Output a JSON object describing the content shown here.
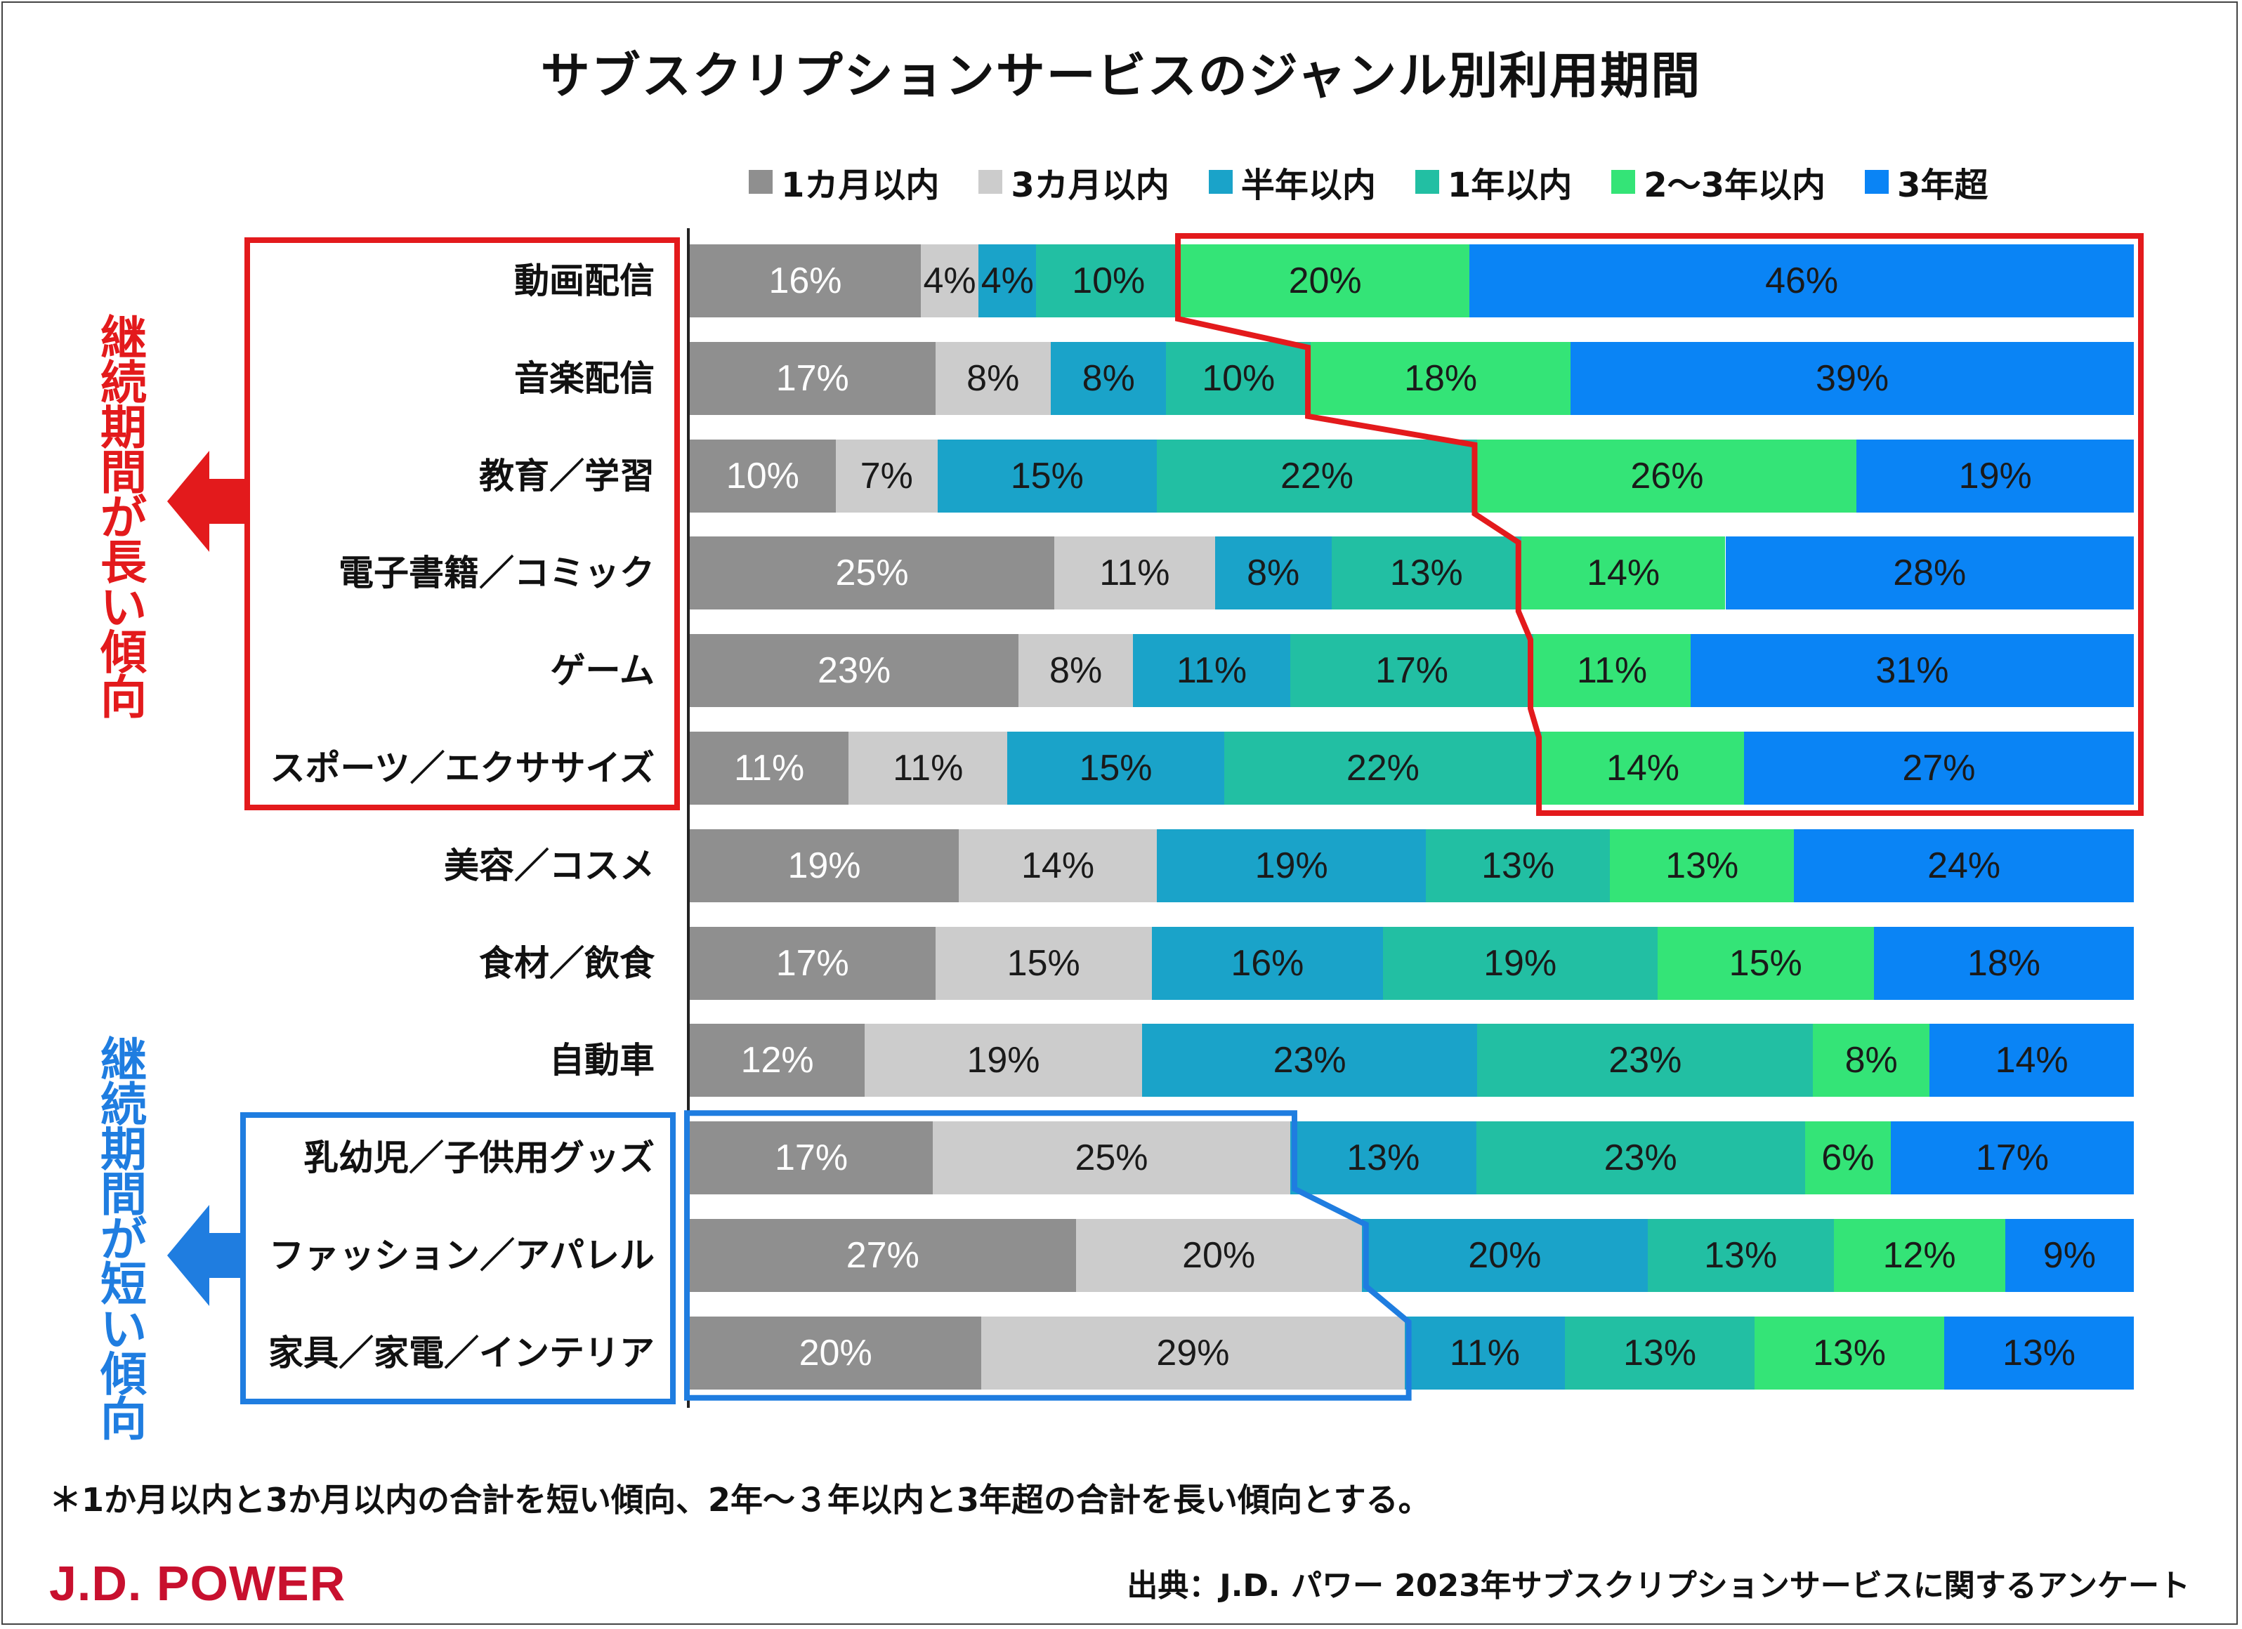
{
  "title": "サブスクリプションサービスのジャンル別利用期間",
  "colors": {
    "1m": "#8f8f8f",
    "3m": "#cccccc",
    "6m": "#1aa3c9",
    "1y": "#22bfa3",
    "2-3y": "#34e477",
    "3y+": "#0a84f5",
    "long_accent": "#e31a1c",
    "short_accent": "#1f7de0"
  },
  "side_labels": {
    "long": "継続期間が長い傾向",
    "short": "継続期間が短い傾向"
  },
  "footnote": "＊1か月以内と3か月以内の合計を短い傾向、2年～３年以内と3年超の合計を長い傾向とする。",
  "logo": "J.D. POWER",
  "source": "出典：J.D. パワー 2023年サブスクリプションサービスに関するアンケート",
  "chart_data": {
    "type": "bar",
    "orientation": "horizontal",
    "stacked": "percent",
    "title": "サブスクリプションサービスのジャンル別利用期間",
    "xlim": [
      0,
      100
    ],
    "legend_position": "top",
    "categories": [
      "動画配信",
      "音楽配信",
      "教育／学習",
      "電子書籍／コミック",
      "ゲーム",
      "スポーツ／エクササイズ",
      "美容／コスメ",
      "食材／飲食",
      "自動車",
      "乳幼児／子供用グッズ",
      "ファッション／アパレル",
      "家具／家電／インテリア"
    ],
    "series": [
      {
        "key": "1m",
        "name": "1カ月以内",
        "values": [
          16,
          17,
          10,
          25,
          23,
          11,
          19,
          17,
          12,
          17,
          27,
          20
        ]
      },
      {
        "key": "3m",
        "name": "3カ月以内",
        "values": [
          4,
          8,
          7,
          11,
          8,
          11,
          14,
          15,
          19,
          25,
          20,
          29
        ]
      },
      {
        "key": "6m",
        "name": "半年以内",
        "values": [
          4,
          8,
          15,
          8,
          11,
          15,
          19,
          16,
          23,
          13,
          20,
          11
        ]
      },
      {
        "key": "1y",
        "name": "1年以内",
        "values": [
          10,
          10,
          22,
          13,
          17,
          22,
          13,
          19,
          23,
          23,
          13,
          13
        ]
      },
      {
        "key": "2-3y",
        "name": "2～3年以内",
        "values": [
          20,
          18,
          26,
          14,
          11,
          14,
          13,
          15,
          8,
          6,
          12,
          13
        ]
      },
      {
        "key": "3y+",
        "name": "3年超",
        "values": [
          46,
          39,
          19,
          28,
          31,
          27,
          24,
          18,
          14,
          17,
          9,
          13
        ]
      }
    ],
    "value_suffix": "%",
    "groups": [
      {
        "label": "継続期間が長い傾向",
        "categories": [
          0,
          1,
          2,
          3,
          4,
          5
        ],
        "series": [
          "2-3y",
          "3y+"
        ]
      },
      {
        "label": "継続期間が短い傾向",
        "categories": [
          9,
          10,
          11
        ],
        "series": [
          "1m",
          "3m"
        ]
      }
    ]
  }
}
